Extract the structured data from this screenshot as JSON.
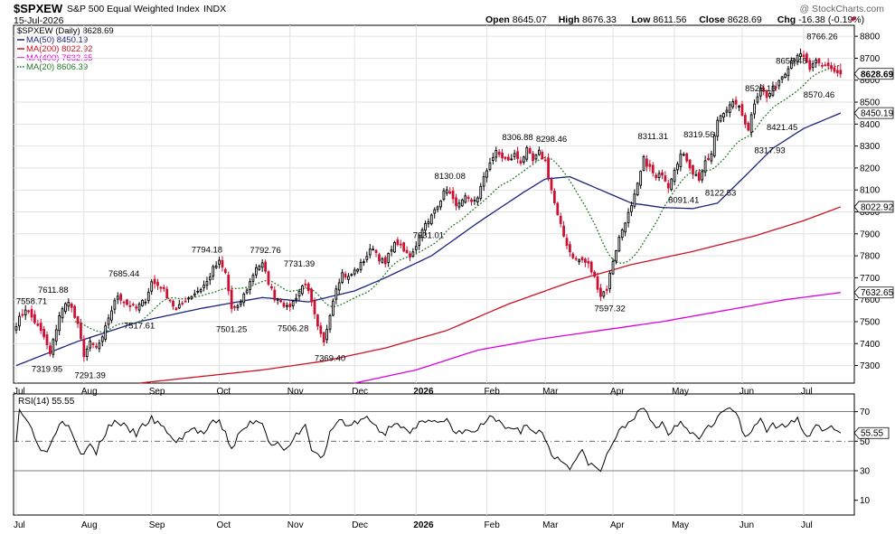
{
  "header": {
    "symbol": "$SPXEW",
    "name": "S&P 500 Equal Weighted Index",
    "exchange": "INDX",
    "date": "15-Jul-2026",
    "watermark": "@ StockCharts.com",
    "ohlc": [
      {
        "label": "Open",
        "value": "8645.07"
      },
      {
        "label": "High",
        "value": "8676.33"
      },
      {
        "label": "Low",
        "value": "8611.56"
      },
      {
        "label": "Close",
        "value": "8628.69"
      },
      {
        "label": "Chg",
        "value": "-16.38 (-0.19%)"
      }
    ]
  },
  "legend": [
    {
      "text": "$SPXEW (Daily) 8628.69",
      "color": "#000000",
      "style": "none"
    },
    {
      "text": "MA(50) 8450.19",
      "color": "#1a237e",
      "style": "solid"
    },
    {
      "text": "MA(200) 8022.92",
      "color": "#cc1122",
      "style": "solid"
    },
    {
      "text": "MA(400) 7632.65",
      "color": "#dd00dd",
      "style": "solid"
    },
    {
      "text": "MA(20) 8606.39",
      "color": "#227722",
      "style": "dotted"
    }
  ],
  "rsi_label": "RSI(14) 55.55",
  "chart_data": {
    "type": "candlestick",
    "price_axis": {
      "min": 7220,
      "max": 8850,
      "ticks": [
        7300,
        7400,
        7500,
        7600,
        7700,
        7800,
        7900,
        8000,
        8100,
        8200,
        8300,
        8400,
        8500,
        8600,
        8700,
        8800
      ]
    },
    "rsi_axis": {
      "min": 0,
      "max": 82,
      "ticks": [
        10,
        30,
        50,
        70
      ],
      "levels": [
        30,
        50,
        70
      ]
    },
    "x_labels": [
      "Jul",
      "Aug",
      "Sep",
      "Oct",
      "Nov",
      "Dec",
      "2026",
      "Feb",
      "Mar",
      "Apr",
      "May",
      "Jun",
      "Jul"
    ],
    "x_label_days": [
      0,
      22,
      44,
      66,
      89,
      110,
      130,
      153,
      172,
      194,
      214,
      236,
      256
    ],
    "total_days": 271,
    "close_anchors": [
      [
        0,
        7490
      ],
      [
        3,
        7560
      ],
      [
        6,
        7500
      ],
      [
        9,
        7430
      ],
      [
        11,
        7350
      ],
      [
        14,
        7530
      ],
      [
        17,
        7600
      ],
      [
        20,
        7480
      ],
      [
        22,
        7350
      ],
      [
        24,
        7400
      ],
      [
        26,
        7380
      ],
      [
        28,
        7420
      ],
      [
        30,
        7520
      ],
      [
        33,
        7620
      ],
      [
        36,
        7580
      ],
      [
        39,
        7560
      ],
      [
        42,
        7600
      ],
      [
        44,
        7680
      ],
      [
        47,
        7660
      ],
      [
        50,
        7600
      ],
      [
        52,
        7550
      ],
      [
        55,
        7600
      ],
      [
        57,
        7620
      ],
      [
        60,
        7650
      ],
      [
        62,
        7680
      ],
      [
        64,
        7740
      ],
      [
        66,
        7770
      ],
      [
        68,
        7720
      ],
      [
        70,
        7560
      ],
      [
        72,
        7560
      ],
      [
        74,
        7620
      ],
      [
        76,
        7680
      ],
      [
        78,
        7750
      ],
      [
        80,
        7760
      ],
      [
        82,
        7680
      ],
      [
        84,
        7610
      ],
      [
        86,
        7600
      ],
      [
        88,
        7560
      ],
      [
        90,
        7590
      ],
      [
        92,
        7640
      ],
      [
        94,
        7680
      ],
      [
        96,
        7580
      ],
      [
        98,
        7470
      ],
      [
        100,
        7400
      ],
      [
        102,
        7540
      ],
      [
        104,
        7660
      ],
      [
        106,
        7720
      ],
      [
        108,
        7700
      ],
      [
        110,
        7730
      ],
      [
        112,
        7760
      ],
      [
        114,
        7800
      ],
      [
        116,
        7840
      ],
      [
        118,
        7790
      ],
      [
        120,
        7760
      ],
      [
        122,
        7840
      ],
      [
        124,
        7860
      ],
      [
        126,
        7820
      ],
      [
        128,
        7800
      ],
      [
        130,
        7850
      ],
      [
        132,
        7930
      ],
      [
        134,
        7950
      ],
      [
        136,
        8010
      ],
      [
        138,
        8060
      ],
      [
        140,
        8110
      ],
      [
        142,
        8050
      ],
      [
        144,
        8030
      ],
      [
        146,
        8060
      ],
      [
        148,
        8040
      ],
      [
        150,
        8070
      ],
      [
        152,
        8150
      ],
      [
        154,
        8230
      ],
      [
        156,
        8270
      ],
      [
        158,
        8250
      ],
      [
        160,
        8230
      ],
      [
        162,
        8260
      ],
      [
        164,
        8230
      ],
      [
        166,
        8280
      ],
      [
        168,
        8230
      ],
      [
        170,
        8270
      ],
      [
        172,
        8230
      ],
      [
        174,
        8100
      ],
      [
        176,
        7980
      ],
      [
        178,
        7890
      ],
      [
        180,
        7820
      ],
      [
        182,
        7780
      ],
      [
        184,
        7780
      ],
      [
        186,
        7760
      ],
      [
        188,
        7700
      ],
      [
        190,
        7620
      ],
      [
        192,
        7650
      ],
      [
        194,
        7780
      ],
      [
        196,
        7880
      ],
      [
        198,
        7960
      ],
      [
        200,
        8020
      ],
      [
        202,
        8120
      ],
      [
        204,
        8240
      ],
      [
        206,
        8200
      ],
      [
        208,
        8150
      ],
      [
        210,
        8180
      ],
      [
        212,
        8120
      ],
      [
        214,
        8200
      ],
      [
        216,
        8260
      ],
      [
        218,
        8240
      ],
      [
        220,
        8180
      ],
      [
        222,
        8150
      ],
      [
        224,
        8220
      ],
      [
        226,
        8260
      ],
      [
        228,
        8420
      ],
      [
        230,
        8460
      ],
      [
        232,
        8480
      ],
      [
        234,
        8500
      ],
      [
        236,
        8440
      ],
      [
        238,
        8380
      ],
      [
        240,
        8500
      ],
      [
        242,
        8570
      ],
      [
        244,
        8520
      ],
      [
        246,
        8560
      ],
      [
        248,
        8600
      ],
      [
        250,
        8640
      ],
      [
        252,
        8690
      ],
      [
        254,
        8720
      ],
      [
        256,
        8700
      ],
      [
        258,
        8650
      ],
      [
        260,
        8680
      ],
      [
        262,
        8660
      ],
      [
        264,
        8670
      ],
      [
        266,
        8640
      ],
      [
        268,
        8628.69
      ]
    ],
    "rsi_anchors": [
      [
        0,
        52
      ],
      [
        1,
        72
      ],
      [
        3,
        66
      ],
      [
        5,
        58
      ],
      [
        7,
        50
      ],
      [
        9,
        42
      ],
      [
        11,
        47
      ],
      [
        14,
        63
      ],
      [
        17,
        63
      ],
      [
        20,
        47
      ],
      [
        22,
        40
      ],
      [
        24,
        48
      ],
      [
        26,
        42
      ],
      [
        28,
        52
      ],
      [
        30,
        60
      ],
      [
        33,
        64
      ],
      [
        36,
        58
      ],
      [
        39,
        55
      ],
      [
        42,
        62
      ],
      [
        44,
        65
      ],
      [
        47,
        60
      ],
      [
        50,
        55
      ],
      [
        52,
        48
      ],
      [
        55,
        56
      ],
      [
        58,
        58
      ],
      [
        61,
        55
      ],
      [
        64,
        62
      ],
      [
        66,
        63
      ],
      [
        68,
        55
      ],
      [
        70,
        45
      ],
      [
        72,
        53
      ],
      [
        74,
        58
      ],
      [
        76,
        62
      ],
      [
        78,
        65
      ],
      [
        80,
        62
      ],
      [
        82,
        52
      ],
      [
        84,
        47
      ],
      [
        86,
        48
      ],
      [
        88,
        43
      ],
      [
        90,
        50
      ],
      [
        92,
        57
      ],
      [
        94,
        60
      ],
      [
        96,
        45
      ],
      [
        98,
        40
      ],
      [
        100,
        40
      ],
      [
        102,
        55
      ],
      [
        104,
        62
      ],
      [
        106,
        65
      ],
      [
        108,
        60
      ],
      [
        110,
        62
      ],
      [
        112,
        64
      ],
      [
        114,
        65
      ],
      [
        116,
        62
      ],
      [
        118,
        58
      ],
      [
        120,
        55
      ],
      [
        122,
        62
      ],
      [
        124,
        64
      ],
      [
        126,
        58
      ],
      [
        128,
        55
      ],
      [
        130,
        58
      ],
      [
        132,
        64
      ],
      [
        134,
        66
      ],
      [
        136,
        64
      ],
      [
        138,
        62
      ],
      [
        140,
        64
      ],
      [
        142,
        56
      ],
      [
        144,
        55
      ],
      [
        146,
        58
      ],
      [
        148,
        55
      ],
      [
        150,
        58
      ],
      [
        152,
        62
      ],
      [
        154,
        65
      ],
      [
        156,
        64
      ],
      [
        158,
        60
      ],
      [
        160,
        58
      ],
      [
        162,
        60
      ],
      [
        164,
        57
      ],
      [
        166,
        62
      ],
      [
        168,
        55
      ],
      [
        170,
        58
      ],
      [
        172,
        52
      ],
      [
        174,
        42
      ],
      [
        176,
        38
      ],
      [
        178,
        36
      ],
      [
        180,
        33
      ],
      [
        182,
        38
      ],
      [
        184,
        42
      ],
      [
        186,
        36
      ],
      [
        188,
        32
      ],
      [
        190,
        30
      ],
      [
        192,
        40
      ],
      [
        194,
        50
      ],
      [
        196,
        56
      ],
      [
        198,
        60
      ],
      [
        200,
        66
      ],
      [
        202,
        68
      ],
      [
        204,
        72
      ],
      [
        206,
        64
      ],
      [
        208,
        60
      ],
      [
        210,
        62
      ],
      [
        212,
        55
      ],
      [
        214,
        60
      ],
      [
        216,
        64
      ],
      [
        218,
        60
      ],
      [
        220,
        55
      ],
      [
        222,
        52
      ],
      [
        224,
        60
      ],
      [
        226,
        62
      ],
      [
        228,
        66
      ],
      [
        230,
        70
      ],
      [
        232,
        72
      ],
      [
        234,
        70
      ],
      [
        236,
        56
      ],
      [
        238,
        52
      ],
      [
        240,
        60
      ],
      [
        242,
        66
      ],
      [
        244,
        58
      ],
      [
        246,
        60
      ],
      [
        248,
        58
      ],
      [
        250,
        62
      ],
      [
        252,
        65
      ],
      [
        254,
        64
      ],
      [
        256,
        58
      ],
      [
        258,
        53
      ],
      [
        260,
        63
      ],
      [
        262,
        58
      ],
      [
        264,
        60
      ],
      [
        266,
        57
      ],
      [
        268,
        55.55
      ]
    ],
    "ma50_anchors": [
      [
        0,
        7300
      ],
      [
        20,
        7410
      ],
      [
        40,
        7500
      ],
      [
        60,
        7560
      ],
      [
        80,
        7610
      ],
      [
        95,
        7590
      ],
      [
        110,
        7640
      ],
      [
        120,
        7700
      ],
      [
        135,
        7800
      ],
      [
        150,
        7950
      ],
      [
        165,
        8090
      ],
      [
        172,
        8150
      ],
      [
        180,
        8160
      ],
      [
        190,
        8100
      ],
      [
        200,
        8040
      ],
      [
        210,
        8020
      ],
      [
        220,
        8015
      ],
      [
        228,
        8040
      ],
      [
        236,
        8150
      ],
      [
        246,
        8290
      ],
      [
        256,
        8380
      ],
      [
        268,
        8450.19
      ]
    ],
    "ma200_anchors": [
      [
        40,
        7220
      ],
      [
        60,
        7250
      ],
      [
        80,
        7280
      ],
      [
        100,
        7320
      ],
      [
        120,
        7380
      ],
      [
        140,
        7460
      ],
      [
        160,
        7580
      ],
      [
        180,
        7680
      ],
      [
        200,
        7760
      ],
      [
        220,
        7820
      ],
      [
        240,
        7890
      ],
      [
        256,
        7960
      ],
      [
        268,
        8022.92
      ]
    ],
    "ma400_anchors": [
      [
        110,
        7220
      ],
      [
        130,
        7280
      ],
      [
        150,
        7370
      ],
      [
        170,
        7420
      ],
      [
        190,
        7460
      ],
      [
        210,
        7500
      ],
      [
        230,
        7550
      ],
      [
        250,
        7600
      ],
      [
        268,
        7632.65
      ]
    ],
    "price_annotations": [
      {
        "day": 5,
        "value": 7558.71,
        "text": "7558.71",
        "pos": "above"
      },
      {
        "day": 12,
        "value": 7611.88,
        "text": "7611.88",
        "pos": "above"
      },
      {
        "day": 10,
        "value": 7319.95,
        "text": "7319.95",
        "pos": "below"
      },
      {
        "day": 24,
        "value": 7291.39,
        "text": "7291.39",
        "pos": "below"
      },
      {
        "day": 35,
        "value": 7685.44,
        "text": "7685.44",
        "pos": "above"
      },
      {
        "day": 40,
        "value": 7517.61,
        "text": "7517.61",
        "pos": "below"
      },
      {
        "day": 62,
        "value": 7794.18,
        "text": "7794.18",
        "pos": "above"
      },
      {
        "day": 70,
        "value": 7501.25,
        "text": "7501.25",
        "pos": "below"
      },
      {
        "day": 81,
        "value": 7792.76,
        "text": "7792.76",
        "pos": "above"
      },
      {
        "day": 92,
        "value": 7731.39,
        "text": "7731.39",
        "pos": "above"
      },
      {
        "day": 90,
        "value": 7506.28,
        "text": "7506.28",
        "pos": "below"
      },
      {
        "day": 102,
        "value": 7369.4,
        "text": "7369.40",
        "pos": "below"
      },
      {
        "day": 134,
        "value": 7931.01,
        "text": "7931.01",
        "pos": "below"
      },
      {
        "day": 141,
        "value": 8130.08,
        "text": "8130.08",
        "pos": "above"
      },
      {
        "day": 163,
        "value": 8306.88,
        "text": "8306.88",
        "pos": "above"
      },
      {
        "day": 174,
        "value": 8298.46,
        "text": "8298.46",
        "pos": "above"
      },
      {
        "day": 193,
        "value": 7597.32,
        "text": "7597.32",
        "pos": "below"
      },
      {
        "day": 207,
        "value": 8311.31,
        "text": "8311.31",
        "pos": "above"
      },
      {
        "day": 217,
        "value": 8091.41,
        "text": "8091.41",
        "pos": "below"
      },
      {
        "day": 222,
        "value": 8319.56,
        "text": "8319.56",
        "pos": "above"
      },
      {
        "day": 229,
        "value": 8122.53,
        "text": "8122.53",
        "pos": "below"
      },
      {
        "day": 242,
        "value": 8528.16,
        "text": "8528.16",
        "pos": "above"
      },
      {
        "day": 245,
        "value": 8317.93,
        "text": "8317.93",
        "pos": "below"
      },
      {
        "day": 249,
        "value": 8421.45,
        "text": "8421.45",
        "pos": "below"
      },
      {
        "day": 252,
        "value": 8655.48,
        "text": "8655.48",
        "pos": "above"
      },
      {
        "day": 262,
        "value": 8766.26,
        "text": "8766.26",
        "pos": "above"
      },
      {
        "day": 261,
        "value": 8570.46,
        "text": "8570.46",
        "pos": "below"
      }
    ],
    "price_tags": [
      {
        "value": 8628.69,
        "text": "8628.69",
        "bold": true
      },
      {
        "value": 8450.19,
        "text": "8450.19",
        "bold": false
      },
      {
        "value": 8022.92,
        "text": "8022.92",
        "bold": false
      },
      {
        "value": 7632.65,
        "text": "7632.65",
        "bold": false
      }
    ],
    "rsi_tag": {
      "value": 55.55,
      "text": "55.55"
    }
  },
  "colors": {
    "up": "#000000",
    "down": "#cc1133",
    "grid": "#e2e2e2",
    "ma50": "#1a237e",
    "ma200": "#cc1122",
    "ma400": "#dd00dd",
    "ma20": "#227722",
    "rsi": "#000000"
  }
}
